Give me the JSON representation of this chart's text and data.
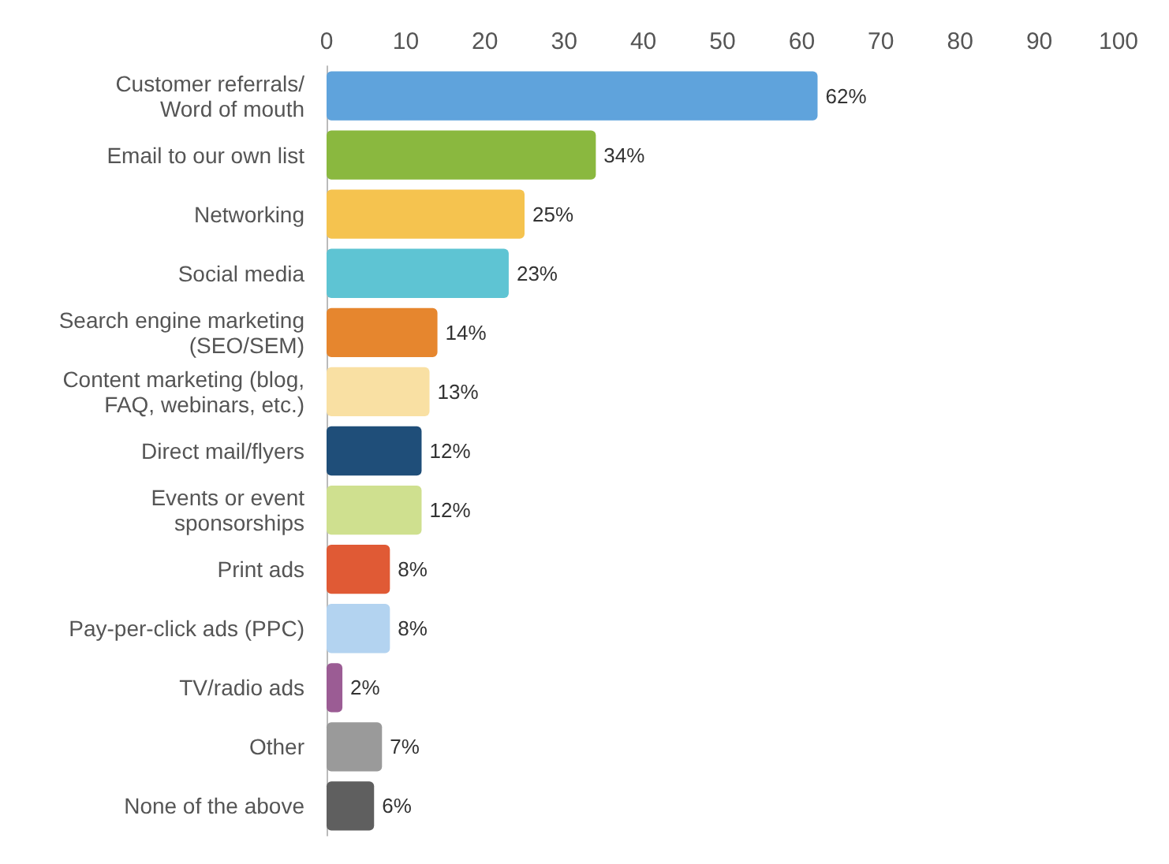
{
  "chart_data": {
    "type": "bar",
    "orientation": "horizontal",
    "categories": [
      "Customer referrals/\nWord of mouth",
      "Email to our own list",
      "Networking",
      "Social media",
      "Search engine marketing\n(SEO/SEM)",
      "Content marketing (blog,\nFAQ, webinars, etc.)",
      "Direct mail/flyers",
      "Events or event\nsponsorships",
      "Print ads",
      "Pay-per-click ads (PPC)",
      "TV/radio ads",
      "Other",
      "None of the above"
    ],
    "values": [
      62,
      34,
      25,
      23,
      14,
      13,
      12,
      12,
      8,
      8,
      2,
      7,
      6
    ],
    "value_labels": [
      "62%",
      "34%",
      "25%",
      "23%",
      "14%",
      "13%",
      "12%",
      "12%",
      "8%",
      "8%",
      "2%",
      "7%",
      "6%"
    ],
    "colors": [
      "#5fa3dc",
      "#8ab83f",
      "#f5c34f",
      "#5ec4d3",
      "#e6862e",
      "#f9e0a3",
      "#1f4e79",
      "#cfe08f",
      "#e05a35",
      "#b3d3f0",
      "#9b5c94",
      "#9a9a9a",
      "#5f5f5f"
    ],
    "xlim": [
      0,
      100
    ],
    "xticks": [
      0,
      10,
      20,
      30,
      40,
      50,
      60,
      70,
      80,
      90,
      100
    ]
  }
}
